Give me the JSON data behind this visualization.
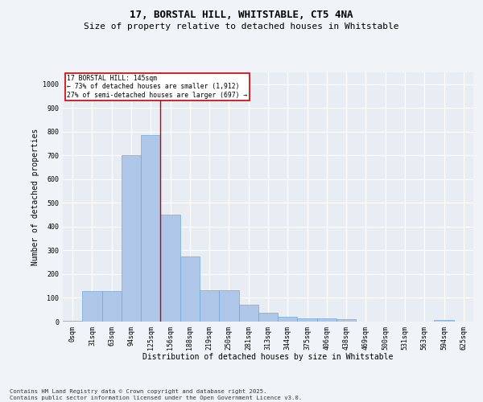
{
  "title": "17, BORSTAL HILL, WHITSTABLE, CT5 4NA",
  "subtitle": "Size of property relative to detached houses in Whitstable",
  "xlabel": "Distribution of detached houses by size in Whitstable",
  "ylabel": "Number of detached properties",
  "categories": [
    "0sqm",
    "31sqm",
    "63sqm",
    "94sqm",
    "125sqm",
    "156sqm",
    "188sqm",
    "219sqm",
    "250sqm",
    "281sqm",
    "313sqm",
    "344sqm",
    "375sqm",
    "406sqm",
    "438sqm",
    "469sqm",
    "500sqm",
    "531sqm",
    "563sqm",
    "594sqm",
    "625sqm"
  ],
  "values": [
    5,
    130,
    130,
    700,
    785,
    450,
    275,
    132,
    132,
    70,
    37,
    22,
    12,
    12,
    10,
    0,
    0,
    0,
    0,
    8,
    0
  ],
  "bar_color": "#aec6e8",
  "bar_edgecolor": "#5a9fd4",
  "background_color": "#e8edf4",
  "grid_color": "#ffffff",
  "annotation_box_text": "17 BORSTAL HILL: 145sqm\n← 73% of detached houses are smaller (1,912)\n27% of semi-detached houses are larger (697) →",
  "annotation_box_color": "#cc0000",
  "vline_x": 4.5,
  "vline_color": "#cc0000",
  "ylim": [
    0,
    1050
  ],
  "yticks": [
    0,
    100,
    200,
    300,
    400,
    500,
    600,
    700,
    800,
    900,
    1000
  ],
  "footer": "Contains HM Land Registry data © Crown copyright and database right 2025.\nContains public sector information licensed under the Open Government Licence v3.0.",
  "title_fontsize": 9,
  "subtitle_fontsize": 8,
  "label_fontsize": 7,
  "tick_fontsize": 6,
  "annotation_fontsize": 5.8,
  "footer_fontsize": 5.2,
  "fig_bg": "#f0f4f8"
}
